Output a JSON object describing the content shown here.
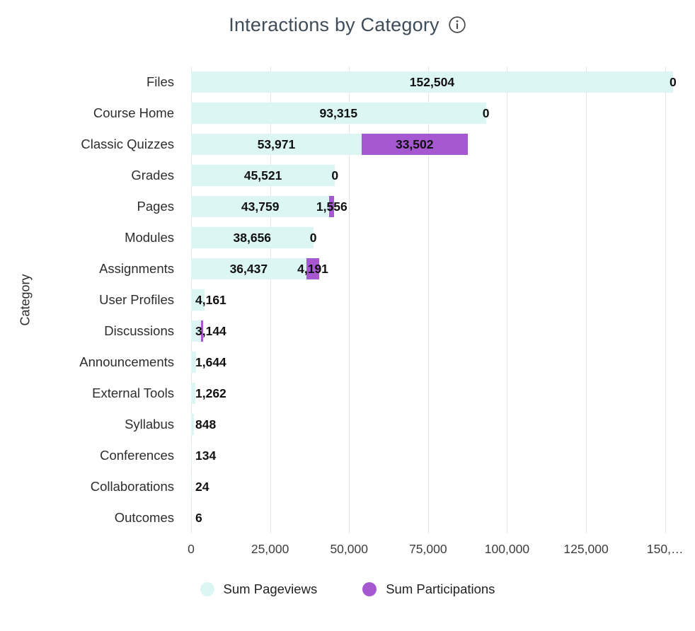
{
  "header": {
    "title": "Interactions by Category"
  },
  "chart_data": {
    "type": "bar",
    "orientation": "horizontal",
    "title": "Interactions by Category",
    "ylabel": "Category",
    "xlim": [
      0,
      155000
    ],
    "grid": true,
    "legend_position": "bottom",
    "categories": [
      "Files",
      "Course Home",
      "Classic Quizzes",
      "Grades",
      "Pages",
      "Modules",
      "Assignments",
      "User Profiles",
      "Discussions",
      "Announcements",
      "External Tools",
      "Syllabus",
      "Conferences",
      "Collaborations",
      "Outcomes"
    ],
    "series": [
      {
        "name": "Sum Pageviews",
        "color": "#dcf7f3",
        "values": [
          152504,
          93315,
          53971,
          45521,
          43759,
          38656,
          36437,
          4161,
          3144,
          1644,
          1262,
          848,
          134,
          24,
          6
        ]
      },
      {
        "name": "Sum Participations",
        "color": "#a558d0",
        "values": [
          0,
          0,
          33502,
          0,
          1556,
          0,
          4191,
          null,
          null,
          null,
          null,
          null,
          null,
          null,
          null
        ]
      }
    ],
    "value_labels": {
      "pageviews": [
        "152,504",
        "93,315",
        "53,971",
        "45,521",
        "43,759",
        "38,656",
        "36,437",
        "4,161",
        "3,144",
        "1,644",
        "1,262",
        "848",
        "134",
        "24",
        "6"
      ],
      "participations": [
        "0",
        "0",
        "33,502",
        "0",
        "1,556",
        "0",
        "4,191",
        "",
        "",
        "",
        "",
        "",
        "",
        "",
        ""
      ]
    },
    "x_ticks": [
      {
        "value": 0,
        "label": "0"
      },
      {
        "value": 25000,
        "label": "25,000"
      },
      {
        "value": 50000,
        "label": "50,000"
      },
      {
        "value": 75000,
        "label": "75,000"
      },
      {
        "value": 100000,
        "label": "100,000"
      },
      {
        "value": 125000,
        "label": "125,000"
      },
      {
        "value": 150000,
        "label": "150,…"
      }
    ],
    "participation_sliver_rows": [
      "Discussions"
    ]
  },
  "legend": {
    "items": [
      {
        "label": "Sum Pageviews",
        "color": "#dcf7f3"
      },
      {
        "label": "Sum Participations",
        "color": "#a558d0"
      }
    ]
  }
}
